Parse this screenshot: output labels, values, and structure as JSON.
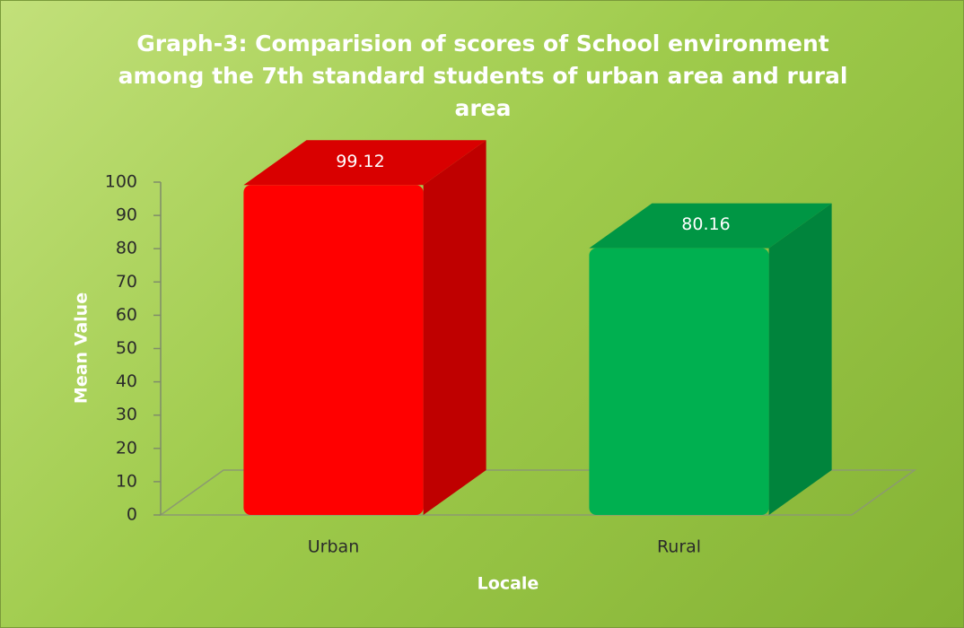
{
  "chart_data": {
    "type": "bar3d",
    "title": "Graph-3: Comparision of scores of School environment among the 7th standard students of urban area and rural area",
    "xlabel": "Locale",
    "ylabel": "Mean Value",
    "categories": [
      "Urban",
      "Rural"
    ],
    "values": [
      99.12,
      80.16
    ],
    "colors": [
      "#ff0000",
      "#00b050"
    ],
    "ylim": [
      0,
      100
    ],
    "yticks": [
      0,
      10,
      20,
      30,
      40,
      50,
      60,
      70,
      80,
      90,
      100
    ],
    "grid": false
  }
}
